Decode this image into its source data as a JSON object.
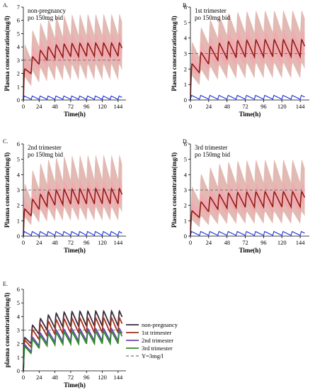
{
  "colors": {
    "band_outer": "#d9a39a",
    "band_inner": "#f3a7b1",
    "mean_line": "#8f1e14",
    "low_line": "#2b3fd6",
    "ref_line": "#555555"
  },
  "chart_data": [
    {
      "type": "line",
      "panel": "A.",
      "annotation": [
        "non-pregnancy",
        "po 150mg bid"
      ],
      "xlabel": "Time(h)",
      "ylabel": "Plasma concentration(mg/l)",
      "xlim": [
        0,
        156
      ],
      "ylim": [
        0,
        7
      ],
      "xticks": [
        0,
        24,
        48,
        72,
        96,
        120,
        144
      ],
      "yticks": [
        0,
        1,
        2,
        3,
        4,
        5,
        6,
        7
      ],
      "dose_interval_h": 12,
      "ref_y": 3,
      "series": [
        {
          "role": "mean",
          "peak": 4.3,
          "trough": 3.3,
          "first_peak": 1.8
        },
        {
          "role": "outer_band",
          "upper_peak": 6.5,
          "upper_trough": 4.9,
          "lower_peak": 2.7,
          "lower_trough": 1.5
        },
        {
          "role": "inner_band",
          "upper_peak": 5.1,
          "upper_trough": 4.0,
          "lower_peak": 3.4,
          "lower_trough": 2.6
        },
        {
          "role": "low",
          "peak": 0.3,
          "trough": 0.05
        }
      ]
    },
    {
      "type": "line",
      "panel": "B.",
      "annotation": [
        "1st trimester",
        "po 150mg bid"
      ],
      "xlabel": "Time(h)",
      "ylabel": "Plasma concentration(mg/l)",
      "xlim": [
        0,
        156
      ],
      "ylim": [
        0,
        6
      ],
      "xticks": [
        0,
        24,
        48,
        72,
        96,
        120,
        144
      ],
      "yticks": [
        0,
        1,
        2,
        3,
        4,
        5,
        6
      ],
      "dose_interval_h": 12,
      "ref_y": 3,
      "series": [
        {
          "role": "mean",
          "peak": 3.9,
          "trough": 2.8,
          "first_peak": 1.9
        },
        {
          "role": "outer_band",
          "upper_peak": 5.8,
          "upper_trough": 4.4,
          "lower_peak": 2.4,
          "lower_trough": 1.4
        },
        {
          "role": "inner_band",
          "upper_peak": 4.6,
          "upper_trough": 3.5,
          "lower_peak": 3.0,
          "lower_trough": 2.2
        },
        {
          "role": "low",
          "peak": 0.3,
          "trough": 0.05
        }
      ]
    },
    {
      "type": "line",
      "panel": "C.",
      "annotation": [
        "2nd trimester",
        "po 150mg bid"
      ],
      "xlabel": "Time(h)",
      "ylabel": "Plasma concentration(mg/l)",
      "xlim": [
        0,
        156
      ],
      "ylim": [
        0,
        6
      ],
      "xticks": [
        0,
        24,
        48,
        72,
        96,
        120,
        144
      ],
      "yticks": [
        0,
        1,
        2,
        3,
        4,
        5,
        6
      ],
      "dose_interval_h": 12,
      "ref_y": 3,
      "series": [
        {
          "role": "mean",
          "peak": 3.1,
          "trough": 2.1,
          "first_peak": 1.4
        },
        {
          "role": "outer_band",
          "upper_peak": 5.3,
          "upper_trough": 3.7,
          "lower_peak": 1.9,
          "lower_trough": 1.0
        },
        {
          "role": "inner_band",
          "upper_peak": 3.7,
          "upper_trough": 2.8,
          "lower_peak": 2.4,
          "lower_trough": 1.6
        },
        {
          "role": "low",
          "peak": 0.3,
          "trough": 0.05
        }
      ]
    },
    {
      "type": "line",
      "panel": "D.",
      "annotation": [
        "3rd trimester",
        "po 150mg bid"
      ],
      "xlabel": "Time(h)",
      "ylabel": "Plasma concentration(mg/l)",
      "xlim": [
        0,
        156
      ],
      "ylim": [
        0,
        6
      ],
      "xticks": [
        0,
        24,
        48,
        72,
        96,
        120,
        144
      ],
      "yticks": [
        0,
        1,
        2,
        3,
        4,
        5,
        6
      ],
      "dose_interval_h": 12,
      "ref_y": 3,
      "series": [
        {
          "role": "mean",
          "peak": 2.9,
          "trough": 1.9,
          "first_peak": 1.3
        },
        {
          "role": "outer_band",
          "upper_peak": 5.0,
          "upper_trough": 3.5,
          "lower_peak": 1.6,
          "lower_trough": 0.8
        },
        {
          "role": "inner_band",
          "upper_peak": 3.5,
          "upper_trough": 2.6,
          "lower_peak": 2.2,
          "lower_trough": 1.4
        },
        {
          "role": "low",
          "peak": 0.3,
          "trough": 0.05
        }
      ]
    },
    {
      "type": "line",
      "panel": "E.",
      "xlabel": "Time(h)",
      "ylabel": "plasma concentration(mg/l)",
      "xlim": [
        0,
        156
      ],
      "ylim": [
        0,
        6
      ],
      "xticks": [
        0,
        24,
        48,
        72,
        96,
        120,
        144
      ],
      "yticks": [
        0,
        1,
        2,
        3,
        4,
        5,
        6
      ],
      "dose_interval_h": 12,
      "ref_y": 3,
      "legend": "right",
      "series": [
        {
          "name": "non-pregnancy",
          "color": "#3a2a3a",
          "peak": 4.4,
          "trough": 3.3,
          "first_peak": 1.9
        },
        {
          "name": "1st trimester",
          "color": "#a0321e",
          "peak": 3.9,
          "trough": 2.8,
          "first_peak": 1.8
        },
        {
          "name": "2nd trimester",
          "color": "#6a44b8",
          "peak": 3.1,
          "trough": 2.2,
          "first_peak": 1.6
        },
        {
          "name": "3rd trimester",
          "color": "#2f8a2a",
          "peak": 2.9,
          "trough": 2.0,
          "first_peak": 1.5
        },
        {
          "name": "Y=3mg/l",
          "color": "#555555",
          "dashed": true,
          "value": 3
        }
      ]
    }
  ]
}
